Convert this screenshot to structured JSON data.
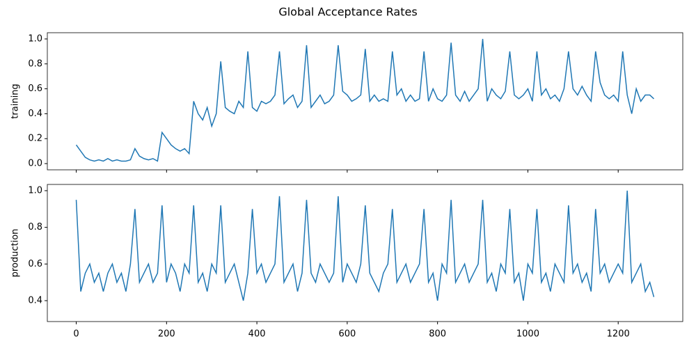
{
  "chart_data": {
    "type": "line",
    "title": "Global Acceptance Rates",
    "x": [
      0,
      10,
      20,
      30,
      40,
      50,
      60,
      70,
      80,
      90,
      100,
      110,
      120,
      130,
      140,
      150,
      160,
      170,
      180,
      190,
      200,
      210,
      220,
      230,
      240,
      250,
      260,
      270,
      280,
      290,
      300,
      310,
      320,
      330,
      340,
      350,
      360,
      370,
      380,
      390,
      400,
      410,
      420,
      430,
      440,
      450,
      460,
      470,
      480,
      490,
      500,
      510,
      520,
      530,
      540,
      550,
      560,
      570,
      580,
      590,
      600,
      610,
      620,
      630,
      640,
      650,
      660,
      670,
      680,
      690,
      700,
      710,
      720,
      730,
      740,
      750,
      760,
      770,
      780,
      790,
      800,
      810,
      820,
      830,
      840,
      850,
      860,
      870,
      880,
      890,
      900,
      910,
      920,
      930,
      940,
      950,
      960,
      970,
      980,
      990,
      1000,
      1010,
      1020,
      1030,
      1040,
      1050,
      1060,
      1070,
      1080,
      1090,
      1100,
      1110,
      1120,
      1130,
      1140,
      1150,
      1160,
      1170,
      1180,
      1190,
      1200,
      1210,
      1220,
      1230,
      1240,
      1250,
      1260,
      1270,
      1279
    ],
    "xlim": [
      -64,
      1343
    ],
    "xticks": [
      0,
      200,
      400,
      600,
      800,
      1000,
      1200
    ],
    "subplots": [
      {
        "ylabel": "training",
        "ylim": [
          -0.05,
          1.05
        ],
        "yticks": [
          {
            "value": 0,
            "label": "0.0"
          },
          0.2,
          0.4,
          0.6,
          0.8,
          {
            "value": 1,
            "label": "1.0"
          }
        ],
        "series": [
          {
            "color": "#1f77b4",
            "values": [
              0.15,
              0.1,
              0.05,
              0.03,
              0.02,
              0.03,
              0.02,
              0.04,
              0.02,
              0.03,
              0.02,
              0.02,
              0.03,
              0.12,
              0.06,
              0.04,
              0.03,
              0.04,
              0.02,
              0.25,
              0.2,
              0.15,
              0.12,
              0.1,
              0.12,
              0.08,
              0.5,
              0.4,
              0.35,
              0.45,
              0.3,
              0.4,
              0.82,
              0.45,
              0.42,
              0.4,
              0.5,
              0.45,
              0.9,
              0.45,
              0.42,
              0.5,
              0.48,
              0.5,
              0.55,
              0.9,
              0.48,
              0.52,
              0.55,
              0.45,
              0.5,
              0.95,
              0.45,
              0.5,
              0.55,
              0.48,
              0.5,
              0.55,
              0.95,
              0.58,
              0.55,
              0.5,
              0.52,
              0.55,
              0.92,
              0.5,
              0.55,
              0.5,
              0.52,
              0.5,
              0.9,
              0.55,
              0.6,
              0.5,
              0.55,
              0.5,
              0.52,
              0.9,
              0.5,
              0.6,
              0.52,
              0.5,
              0.55,
              0.97,
              0.55,
              0.5,
              0.58,
              0.5,
              0.55,
              0.6,
              1.0,
              0.5,
              0.6,
              0.55,
              0.52,
              0.58,
              0.9,
              0.55,
              0.52,
              0.55,
              0.6,
              0.5,
              0.9,
              0.55,
              0.6,
              0.52,
              0.55,
              0.5,
              0.6,
              0.9,
              0.6,
              0.55,
              0.62,
              0.55,
              0.5,
              0.9,
              0.65,
              0.55,
              0.52,
              0.55,
              0.5,
              0.9,
              0.55,
              0.4,
              0.6,
              0.5,
              0.55,
              0.55,
              0.52
            ]
          }
        ]
      },
      {
        "ylabel": "production",
        "ylim": [
          0.286,
          1.034
        ],
        "yticks": [
          0.4,
          0.6,
          0.8,
          {
            "value": 1,
            "label": "1.0"
          }
        ],
        "series": [
          {
            "color": "#1f77b4",
            "values": [
              0.95,
              0.45,
              0.55,
              0.6,
              0.5,
              0.55,
              0.45,
              0.55,
              0.6,
              0.5,
              0.55,
              0.45,
              0.6,
              0.9,
              0.5,
              0.55,
              0.6,
              0.5,
              0.55,
              0.92,
              0.5,
              0.6,
              0.55,
              0.45,
              0.6,
              0.55,
              0.92,
              0.5,
              0.55,
              0.45,
              0.6,
              0.55,
              0.92,
              0.5,
              0.55,
              0.6,
              0.5,
              0.4,
              0.55,
              0.9,
              0.55,
              0.6,
              0.5,
              0.55,
              0.6,
              0.97,
              0.5,
              0.55,
              0.6,
              0.45,
              0.55,
              0.95,
              0.55,
              0.5,
              0.6,
              0.55,
              0.5,
              0.55,
              0.97,
              0.5,
              0.6,
              0.55,
              0.5,
              0.6,
              0.92,
              0.55,
              0.5,
              0.45,
              0.55,
              0.6,
              0.9,
              0.5,
              0.55,
              0.6,
              0.5,
              0.55,
              0.6,
              0.9,
              0.5,
              0.55,
              0.4,
              0.6,
              0.55,
              0.95,
              0.5,
              0.55,
              0.6,
              0.5,
              0.55,
              0.6,
              0.95,
              0.5,
              0.55,
              0.45,
              0.6,
              0.55,
              0.9,
              0.5,
              0.55,
              0.4,
              0.6,
              0.55,
              0.9,
              0.5,
              0.55,
              0.45,
              0.6,
              0.55,
              0.5,
              0.92,
              0.55,
              0.6,
              0.5,
              0.55,
              0.45,
              0.9,
              0.55,
              0.6,
              0.5,
              0.55,
              0.6,
              0.55,
              1.0,
              0.5,
              0.55,
              0.6,
              0.45,
              0.5,
              0.42
            ]
          }
        ]
      }
    ]
  }
}
